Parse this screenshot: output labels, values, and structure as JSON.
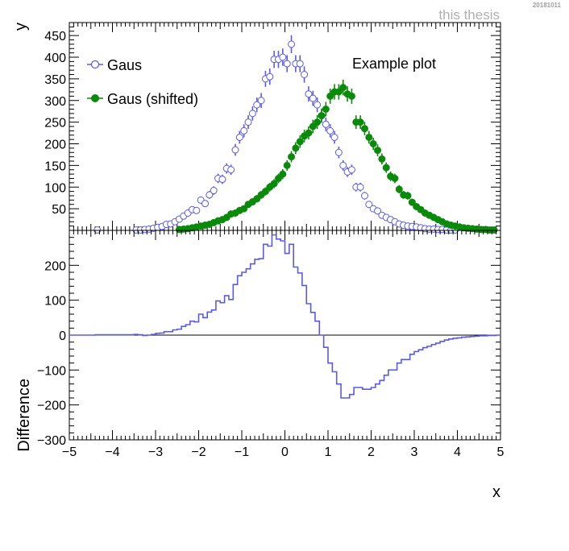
{
  "header": {
    "watermark": "this thesis",
    "datestamp": "20181011"
  },
  "colors": {
    "series1": "#5a5ae6",
    "series2": "#0a8a0a",
    "diff": "#5a5ae6",
    "frame": "#000000"
  },
  "chart_data": [
    {
      "type": "scatter",
      "panel": "top",
      "ylabel": "y",
      "xlim": [
        -5,
        5
      ],
      "ylim": [
        0,
        480
      ],
      "yticks": [
        50,
        100,
        150,
        200,
        250,
        300,
        350,
        400,
        450
      ],
      "annotation": "Example plot",
      "legend": "top-left",
      "x": [
        -4.95,
        -4.85,
        -4.75,
        -4.65,
        -4.55,
        -4.45,
        -4.35,
        -4.25,
        -4.15,
        -4.05,
        -3.95,
        -3.85,
        -3.75,
        -3.65,
        -3.55,
        -3.45,
        -3.35,
        -3.25,
        -3.15,
        -3.05,
        -2.95,
        -2.85,
        -2.75,
        -2.65,
        -2.55,
        -2.45,
        -2.35,
        -2.25,
        -2.15,
        -2.05,
        -1.95,
        -1.85,
        -1.75,
        -1.65,
        -1.55,
        -1.45,
        -1.35,
        -1.25,
        -1.15,
        -1.05,
        -0.95,
        -0.85,
        -0.75,
        -0.65,
        -0.55,
        -0.45,
        -0.35,
        -0.25,
        -0.15,
        -0.05,
        0.05,
        0.15,
        0.25,
        0.35,
        0.45,
        0.55,
        0.65,
        0.75,
        0.85,
        0.95,
        1.05,
        1.15,
        1.25,
        1.35,
        1.45,
        1.55,
        1.65,
        1.75,
        1.85,
        1.95,
        2.05,
        2.15,
        2.25,
        2.35,
        2.45,
        2.55,
        2.65,
        2.75,
        2.85,
        2.95,
        3.05,
        3.15,
        3.25,
        3.35,
        3.45,
        3.55,
        3.65,
        3.75,
        3.85,
        3.95,
        4.05,
        4.15,
        4.25,
        4.35,
        4.45,
        4.55,
        4.65,
        4.75,
        4.85,
        4.95
      ],
      "series": [
        {
          "name": "Gaus",
          "marker": "open-circle",
          "values": [
            0,
            0,
            0,
            0,
            0,
            0,
            1,
            0,
            0,
            0,
            0,
            0,
            0,
            0,
            0,
            1,
            1,
            2,
            3,
            5,
            7,
            9,
            14,
            15,
            20,
            26,
            33,
            40,
            48,
            46,
            70,
            62,
            82,
            92,
            120,
            118,
            143,
            140,
            186,
            215,
            230,
            250,
            270,
            290,
            300,
            350,
            355,
            395,
            395,
            400,
            385,
            430,
            385,
            385,
            360,
            315,
            305,
            290,
            265,
            245,
            230,
            215,
            180,
            150,
            135,
            140,
            100,
            100,
            80,
            60,
            50,
            45,
            35,
            30,
            25,
            20,
            15,
            12,
            10,
            9,
            8,
            6,
            4,
            3,
            3,
            2,
            2,
            1,
            1,
            1,
            0,
            0,
            0,
            0,
            0,
            0,
            0,
            0,
            0,
            0
          ]
        },
        {
          "name": "Gaus (shifted)",
          "marker": "filled-circle",
          "values": [
            0,
            0,
            0,
            0,
            0,
            0,
            0,
            0,
            0,
            0,
            0,
            0,
            0,
            0,
            0,
            0,
            0,
            0,
            0,
            0,
            0,
            0,
            0,
            0,
            0,
            2,
            3,
            4,
            6,
            8,
            10,
            12,
            14,
            18,
            22,
            25,
            30,
            38,
            40,
            46,
            50,
            60,
            66,
            73,
            82,
            90,
            100,
            108,
            120,
            130,
            150,
            170,
            190,
            205,
            218,
            225,
            240,
            250,
            265,
            280,
            310,
            320,
            320,
            330,
            315,
            310,
            250,
            250,
            235,
            215,
            200,
            185,
            165,
            145,
            125,
            120,
            95,
            82,
            80,
            65,
            55,
            48,
            40,
            35,
            30,
            25,
            20,
            15,
            12,
            10,
            8,
            6,
            5,
            4,
            3,
            2,
            2,
            1,
            1,
            0
          ]
        }
      ]
    },
    {
      "type": "histogram",
      "panel": "bottom",
      "xlabel": "x",
      "ylabel": "Difference",
      "xlim": [
        -5,
        5
      ],
      "ylim": [
        -300,
        300
      ],
      "yticks": [
        -300,
        -200,
        -100,
        0,
        100,
        200
      ],
      "xticks": [
        -5,
        -4,
        -3,
        -2,
        -1,
        0,
        1,
        2,
        3,
        4,
        5
      ],
      "reference_line": 0,
      "bin_width": 0.1,
      "x_start": -5,
      "values": [
        0,
        0,
        0,
        0,
        0,
        0,
        1,
        1,
        1,
        1,
        1,
        1,
        1,
        1,
        1,
        2,
        1,
        -1,
        0,
        2,
        5,
        6,
        10,
        10,
        15,
        17,
        25,
        30,
        40,
        38,
        60,
        50,
        66,
        72,
        98,
        93,
        113,
        102,
        145,
        170,
        180,
        190,
        204,
        217,
        219,
        260,
        255,
        287,
        275,
        270,
        234,
        260,
        195,
        178,
        142,
        90,
        65,
        40,
        0,
        -35,
        -80,
        -105,
        -140,
        -180,
        -180,
        -170,
        -150,
        -150,
        -155,
        -155,
        -150,
        -140,
        -130,
        -115,
        -100,
        -100,
        -80,
        -70,
        -70,
        -55,
        -47,
        -42,
        -36,
        -32,
        -27,
        -23,
        -18,
        -14,
        -11,
        -9,
        -8,
        -6,
        -5,
        -4,
        -3,
        -2,
        -2,
        -1,
        -1,
        0
      ]
    }
  ]
}
